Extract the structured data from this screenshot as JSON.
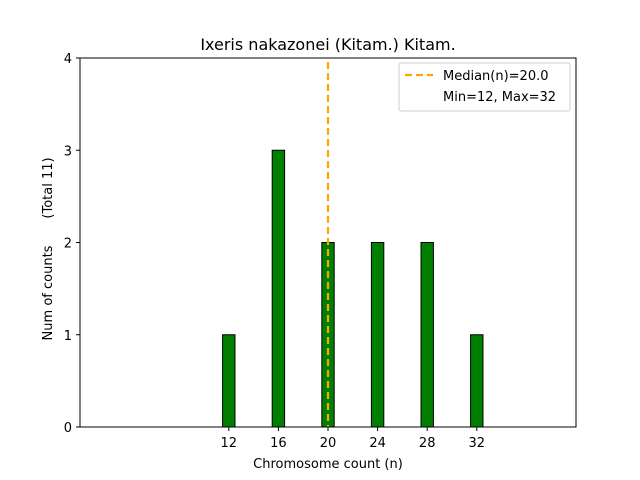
{
  "chart_data": {
    "type": "bar",
    "title": "Ixeris nakazonei (Kitam.) Kitam.",
    "xlabel": "Chromosome count (n)",
    "ylabel_main": "Num of counts",
    "ylabel_total": "(Total 11)",
    "categories": [
      12,
      16,
      20,
      24,
      28,
      32
    ],
    "values": [
      1,
      3,
      2,
      2,
      2,
      1
    ],
    "x_ticks": [
      "12",
      "16",
      "20",
      "24",
      "28",
      "32"
    ],
    "y_ticks": [
      "0",
      "1",
      "2",
      "3",
      "4"
    ],
    "xlim": [
      0,
      40
    ],
    "ylim": [
      0,
      4
    ],
    "bar_color": "#008000",
    "bar_edge_color": "#000000",
    "median": {
      "value": 20.0,
      "label": "Median(n)=20.0",
      "color": "#FFA500"
    },
    "range_label": "Min=12, Max=32",
    "legend_position": "top-right",
    "grid": false
  }
}
